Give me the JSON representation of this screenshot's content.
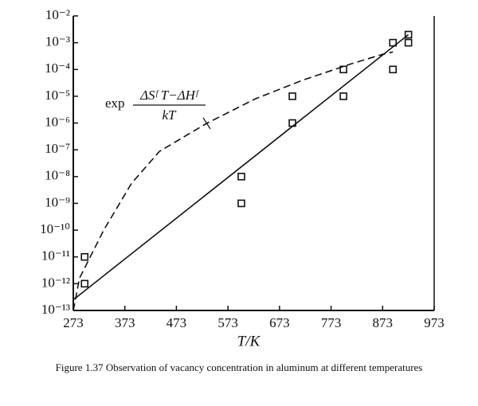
{
  "chart_data": {
    "type": "scatter",
    "xlabel": "T/K",
    "caption": "Figure 1.37 Observation of vacancy concentration in aluminum at different temperatures",
    "annotation": {
      "prefix": "exp",
      "numerator": "ΔSᶠ T−ΔHᶠ",
      "denominator": "kT"
    },
    "xlim": [
      273,
      973
    ],
    "xticks": [
      273,
      373,
      473,
      573,
      673,
      773,
      873,
      973
    ],
    "ylim": [
      1e-13,
      0.01
    ],
    "ylog": true,
    "yticks": [
      {
        "value": 1e-13,
        "label": "10⁻¹³"
      },
      {
        "value": 1e-12,
        "label": "10⁻¹²"
      },
      {
        "value": 1e-11,
        "label": "10⁻¹¹"
      },
      {
        "value": 1e-10,
        "label": "10⁻¹⁰"
      },
      {
        "value": 1e-09,
        "label": "10⁻⁹"
      },
      {
        "value": 1e-08,
        "label": "10⁻⁸"
      },
      {
        "value": 1e-07,
        "label": "10⁻⁷"
      },
      {
        "value": 1e-06,
        "label": "10⁻⁶"
      },
      {
        "value": 1e-05,
        "label": "10⁻⁵"
      },
      {
        "value": 0.0001,
        "label": "10⁻⁴"
      },
      {
        "value": 0.001,
        "label": "10⁻³"
      },
      {
        "value": 0.01,
        "label": "10⁻²"
      }
    ],
    "series": [
      {
        "style": "markers",
        "color": "#111",
        "x": [
          295,
          295,
          599,
          599,
          698,
          698,
          797,
          797,
          893,
          893,
          923,
          923
        ],
        "values": [
          1e-11,
          1e-12,
          1e-08,
          1e-09,
          1e-05,
          1e-06,
          0.0001,
          1e-05,
          0.001,
          0.0001,
          0.002,
          0.001
        ]
      },
      {
        "style": "solid",
        "color": "#111",
        "x": [
          273,
          923
        ],
        "values": [
          2.5e-13,
          0.002
        ]
      },
      {
        "style": "dashed",
        "color": "#111",
        "x": [
          273,
          285,
          332,
          386,
          440,
          533,
          626,
          718,
          811,
          873,
          893
        ],
        "values": [
          1e-13,
          1.6e-12,
          1e-10,
          5.6e-09,
          8.7e-08,
          1e-06,
          8e-06,
          4e-05,
          0.00016,
          0.00037,
          0.00045
        ]
      }
    ]
  }
}
